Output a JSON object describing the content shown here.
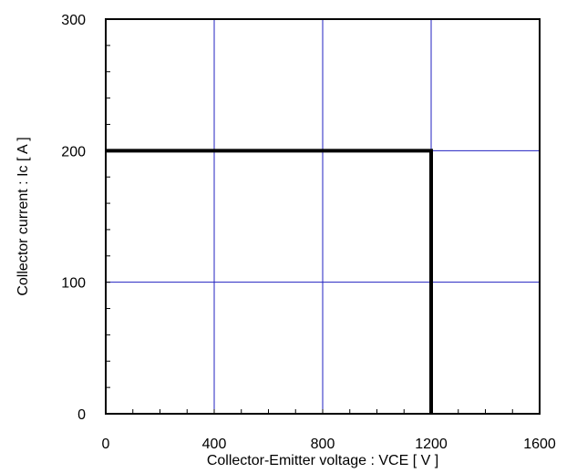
{
  "chart_data": {
    "type": "line",
    "xlabel": "Collector-Emitter voltage : VCE [ V ]",
    "ylabel": "Collector current : Ic [ A ]",
    "xlim": [
      0,
      1600
    ],
    "ylim": [
      0,
      300
    ],
    "x_ticks": [
      0,
      400,
      800,
      1200,
      1600
    ],
    "x_tick_labels": [
      "0",
      "400",
      "800",
      "1200",
      "1600"
    ],
    "y_ticks": [
      0,
      100,
      200,
      300
    ],
    "y_tick_labels": [
      "0",
      "100",
      "200",
      "300"
    ],
    "x_minor_step": 100,
    "y_minor_step": 20,
    "grid": true,
    "legend": "none",
    "series": [
      {
        "x": [
          0,
          1200,
          1200
        ],
        "y": [
          200,
          200,
          0
        ]
      }
    ],
    "colors": {
      "grid": "#2020c0",
      "series": "#000000",
      "frame": "#000000"
    }
  }
}
